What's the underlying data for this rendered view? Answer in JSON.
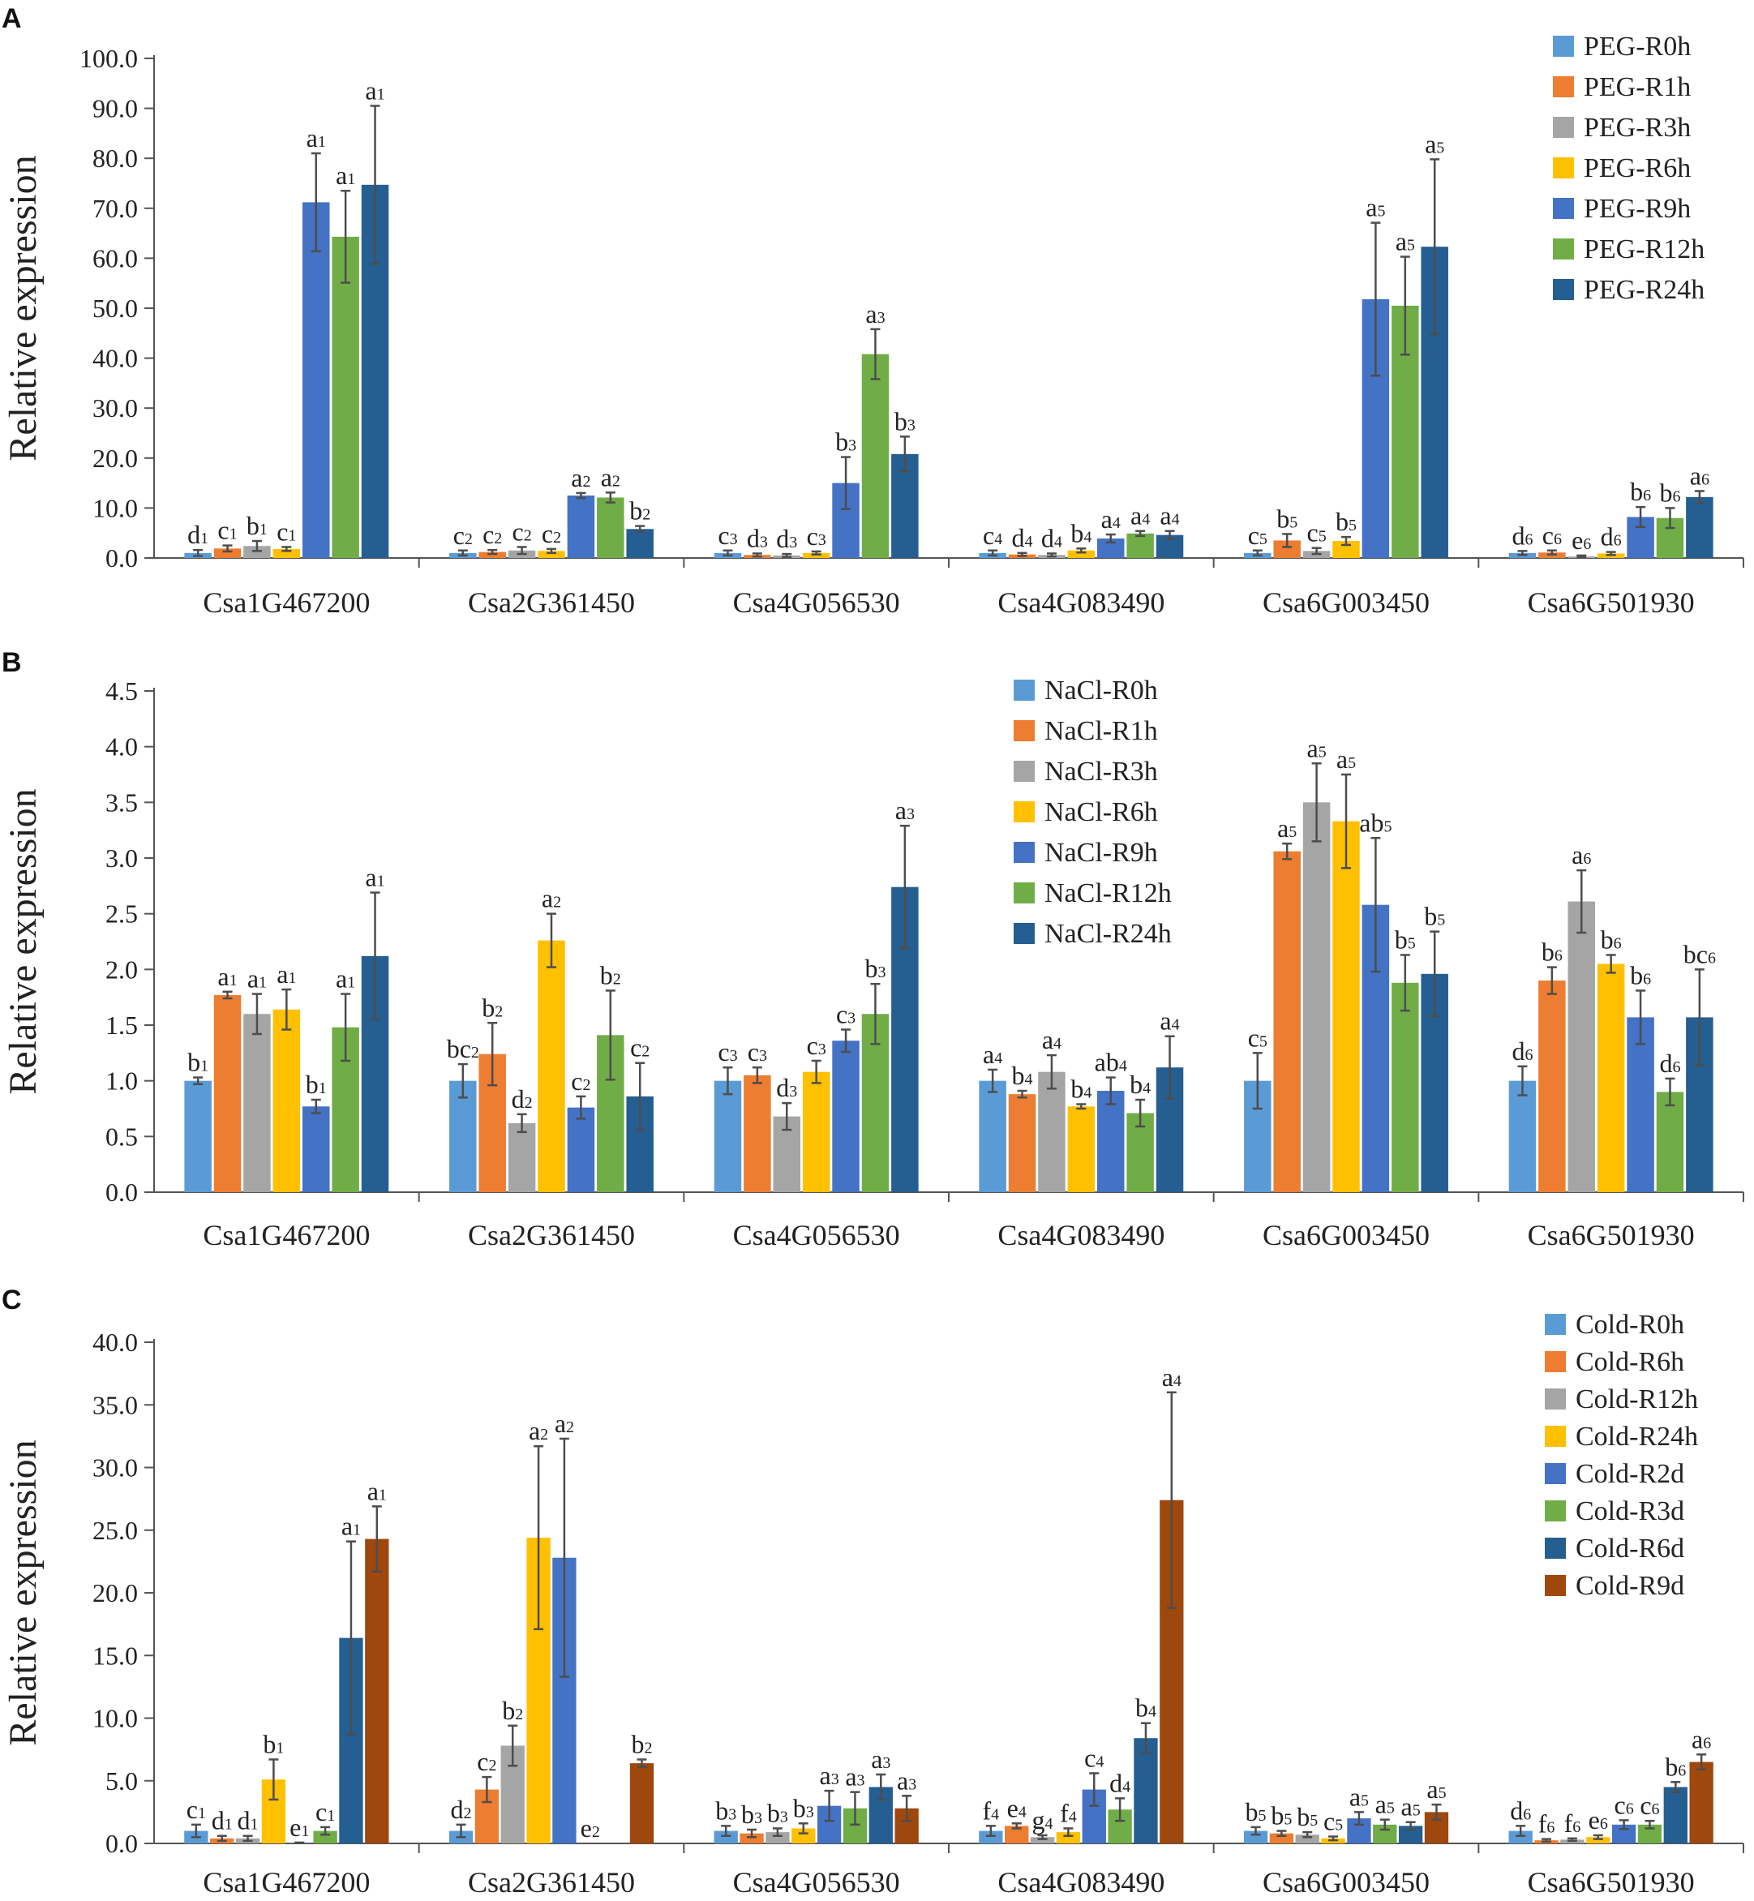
{
  "chart_data": [
    {
      "panel": "A",
      "type": "bar",
      "ylabel": "Relative expression",
      "ylim": [
        0,
        100
      ],
      "yticks": [
        "0.0",
        "10.0",
        "20.0",
        "30.0",
        "40.0",
        "50.0",
        "60.0",
        "70.0",
        "80.0",
        "90.0",
        "100.0"
      ],
      "categories": [
        "Csa1G467200",
        "Csa2G361450",
        "Csa4G056530",
        "Csa4G083490",
        "Csa6G003450",
        "Csa6G501930"
      ],
      "legend_position": "top-right",
      "series": [
        {
          "name": "PEG-R0h",
          "color": "#5b9bd5",
          "values": [
            1.0,
            1.0,
            1.0,
            1.0,
            1.0,
            1.0
          ],
          "errors": [
            0.6,
            0.5,
            0.5,
            0.5,
            0.5,
            0.4
          ],
          "labels": [
            "d1",
            "c2",
            "c3",
            "c4",
            "c5",
            "d6"
          ]
        },
        {
          "name": "PEG-R1h",
          "color": "#ed7d31",
          "values": [
            1.9,
            1.2,
            0.6,
            0.7,
            3.5,
            1.1
          ],
          "errors": [
            0.6,
            0.4,
            0.3,
            0.3,
            1.3,
            0.4
          ],
          "labels": [
            "c1",
            "c2",
            "d3",
            "d4",
            "b5",
            "c6"
          ]
        },
        {
          "name": "PEG-R3h",
          "color": "#a5a5a5",
          "values": [
            2.4,
            1.5,
            0.5,
            0.6,
            1.4,
            0.3
          ],
          "errors": [
            1.0,
            0.7,
            0.3,
            0.3,
            0.6,
            0.2
          ],
          "labels": [
            "b1",
            "c2",
            "d3",
            "d4",
            "c5",
            "e6"
          ]
        },
        {
          "name": "PEG-R6h",
          "color": "#ffc000",
          "values": [
            1.8,
            1.4,
            1.0,
            1.5,
            3.4,
            0.9
          ],
          "errors": [
            0.4,
            0.4,
            0.3,
            0.4,
            0.8,
            0.3
          ],
          "labels": [
            "c1",
            "c2",
            "c3",
            "b4",
            "b5",
            "d6"
          ]
        },
        {
          "name": "PEG-R9h",
          "color": "#4472c4",
          "values": [
            71.2,
            12.5,
            15.0,
            3.9,
            51.8,
            8.2
          ],
          "errors": [
            9.8,
            0.5,
            5.2,
            0.8,
            15.3,
            2.0
          ],
          "labels": [
            "a1",
            "a2",
            "b3",
            "a4",
            "a5",
            "b6"
          ]
        },
        {
          "name": "PEG-R12h",
          "color": "#70ad47",
          "values": [
            64.3,
            12.1,
            40.8,
            4.9,
            50.5,
            8.0
          ],
          "errors": [
            9.2,
            1.0,
            5.0,
            0.5,
            9.8,
            2.0
          ],
          "labels": [
            "a1",
            "a2",
            "a3",
            "a4",
            "a5",
            "b6"
          ]
        },
        {
          "name": "PEG-R24h",
          "color": "#255e91",
          "values": [
            74.7,
            5.8,
            20.8,
            4.6,
            62.3,
            12.2
          ],
          "errors": [
            15.8,
            0.6,
            3.5,
            0.8,
            17.5,
            1.2
          ],
          "labels": [
            "a1",
            "b2",
            "b3",
            "a4",
            "a5",
            "a6"
          ]
        }
      ]
    },
    {
      "panel": "B",
      "type": "bar",
      "ylabel": "Relative expression",
      "ylim": [
        0,
        4.5
      ],
      "yticks": [
        "0.0",
        "0.5",
        "1.0",
        "1.5",
        "2.0",
        "2.5",
        "3.0",
        "3.5",
        "4.0",
        "4.5"
      ],
      "categories": [
        "Csa1G467200",
        "Csa2G361450",
        "Csa4G056530",
        "Csa4G083490",
        "Csa6G003450",
        "Csa6G501930"
      ],
      "legend_position": "top-center",
      "series": [
        {
          "name": "NaCl-R0h",
          "color": "#5b9bd5",
          "values": [
            1.0,
            1.0,
            1.0,
            1.0,
            1.0,
            1.0
          ],
          "errors": [
            0.03,
            0.15,
            0.12,
            0.1,
            0.25,
            0.13
          ],
          "labels": [
            "b1",
            "bc2",
            "c3",
            "a4",
            "c5",
            "d6"
          ]
        },
        {
          "name": "NaCl-R1h",
          "color": "#ed7d31",
          "values": [
            1.77,
            1.24,
            1.05,
            0.88,
            3.06,
            1.9
          ],
          "errors": [
            0.03,
            0.28,
            0.07,
            0.03,
            0.07,
            0.12
          ],
          "labels": [
            "a1",
            "b2",
            "c3",
            "b4",
            "a5",
            "b6"
          ]
        },
        {
          "name": "NaCl-R3h",
          "color": "#a5a5a5",
          "values": [
            1.6,
            0.62,
            0.68,
            1.08,
            3.5,
            2.61
          ],
          "errors": [
            0.18,
            0.08,
            0.12,
            0.15,
            0.35,
            0.28
          ],
          "labels": [
            "a1",
            "d2",
            "d3",
            "a4",
            "a5",
            "a6"
          ]
        },
        {
          "name": "NaCl-R6h",
          "color": "#ffc000",
          "values": [
            1.64,
            2.26,
            1.08,
            0.77,
            3.33,
            2.05
          ],
          "errors": [
            0.18,
            0.24,
            0.1,
            0.02,
            0.42,
            0.08
          ],
          "labels": [
            "a1",
            "a2",
            "c3",
            "b4",
            "a5",
            "b6"
          ]
        },
        {
          "name": "NaCl-R9h",
          "color": "#4472c4",
          "values": [
            0.77,
            0.76,
            1.36,
            0.91,
            2.58,
            1.57
          ],
          "errors": [
            0.06,
            0.1,
            0.1,
            0.12,
            0.6,
            0.24
          ],
          "labels": [
            "b1",
            "c2",
            "c3",
            "ab4",
            "ab5",
            "b6"
          ]
        },
        {
          "name": "NaCl-R12h",
          "color": "#70ad47",
          "values": [
            1.48,
            1.41,
            1.6,
            0.71,
            1.88,
            0.9
          ],
          "errors": [
            0.3,
            0.4,
            0.27,
            0.12,
            0.25,
            0.12
          ],
          "labels": [
            "a1",
            "b2",
            "b3",
            "b4",
            "b5",
            "d6"
          ]
        },
        {
          "name": "NaCl-R24h",
          "color": "#255e91",
          "values": [
            2.12,
            0.86,
            2.74,
            1.12,
            1.96,
            1.57
          ],
          "errors": [
            0.57,
            0.3,
            0.55,
            0.28,
            0.38,
            0.43
          ],
          "labels": [
            "a1",
            "c2",
            "a3",
            "a4",
            "b5",
            "bc6"
          ]
        }
      ]
    },
    {
      "panel": "C",
      "type": "bar",
      "ylabel": "Relative expression",
      "ylim": [
        0,
        40
      ],
      "yticks": [
        "0.0",
        "5.0",
        "10.0",
        "15.0",
        "20.0",
        "25.0",
        "30.0",
        "35.0",
        "40.0"
      ],
      "categories": [
        "Csa1G467200",
        "Csa2G361450",
        "Csa4G056530",
        "Csa4G083490",
        "Csa6G003450",
        "Csa6G501930"
      ],
      "legend_position": "top-right",
      "series": [
        {
          "name": "Cold-R0h",
          "color": "#5b9bd5",
          "values": [
            1.0,
            1.0,
            1.0,
            1.0,
            1.0,
            1.0
          ],
          "errors": [
            0.5,
            0.5,
            0.4,
            0.4,
            0.3,
            0.4
          ],
          "labels": [
            "c1",
            "d2",
            "b3",
            "f4",
            "b5",
            "d6"
          ]
        },
        {
          "name": "Cold-R6h",
          "color": "#ed7d31",
          "values": [
            0.4,
            4.3,
            0.8,
            1.4,
            0.8,
            0.25
          ],
          "errors": [
            0.2,
            1.0,
            0.3,
            0.2,
            0.2,
            0.1
          ],
          "labels": [
            "d1",
            "c2",
            "b3",
            "e4",
            "b5",
            "f6"
          ]
        },
        {
          "name": "Cold-R12h",
          "color": "#a5a5a5",
          "values": [
            0.4,
            7.8,
            0.9,
            0.5,
            0.7,
            0.3
          ],
          "errors": [
            0.2,
            1.6,
            0.3,
            0.15,
            0.2,
            0.1
          ],
          "labels": [
            "d1",
            "b2",
            "b3",
            "g4",
            "b5",
            "f6"
          ]
        },
        {
          "name": "Cold-R24h",
          "color": "#ffc000",
          "values": [
            5.1,
            24.4,
            1.2,
            0.9,
            0.4,
            0.5
          ],
          "errors": [
            1.6,
            7.3,
            0.4,
            0.3,
            0.15,
            0.15
          ],
          "labels": [
            "b1",
            "a2",
            "b3",
            "f4",
            "c5",
            "e6"
          ]
        },
        {
          "name": "Cold-R2d",
          "color": "#4472c4",
          "values": [
            0.05,
            22.8,
            3.0,
            4.3,
            2.0,
            1.5
          ],
          "errors": [
            0.02,
            9.5,
            1.2,
            1.3,
            0.5,
            0.35
          ],
          "labels": [
            "e1",
            "a2",
            "a3",
            "c4",
            "a5",
            "c6"
          ]
        },
        {
          "name": "Cold-R3d",
          "color": "#70ad47",
          "values": [
            1.0,
            0.0,
            2.8,
            2.7,
            1.5,
            1.5
          ],
          "errors": [
            0.3,
            0.0,
            1.3,
            0.9,
            0.4,
            0.3
          ],
          "labels": [
            "c1",
            "e2",
            "a3",
            "d4",
            "a5",
            "c6"
          ]
        },
        {
          "name": "Cold-R6d",
          "color": "#255e91",
          "values": [
            16.4,
            0.0,
            4.5,
            8.4,
            1.4,
            4.5
          ],
          "errors": [
            7.7,
            0.0,
            1.0,
            1.2,
            0.3,
            0.4
          ],
          "labels": [
            "a1",
            "",
            "a3",
            "b4",
            "a5",
            "b6"
          ]
        },
        {
          "name": "Cold-R9d",
          "color": "#9e480e",
          "values": [
            24.3,
            6.4,
            2.8,
            27.4,
            2.5,
            6.5
          ],
          "errors": [
            2.6,
            0.3,
            1.0,
            8.6,
            0.6,
            0.6
          ],
          "labels": [
            "a1",
            "b2",
            "a3",
            "a4",
            "a5",
            "a6"
          ]
        }
      ]
    }
  ]
}
